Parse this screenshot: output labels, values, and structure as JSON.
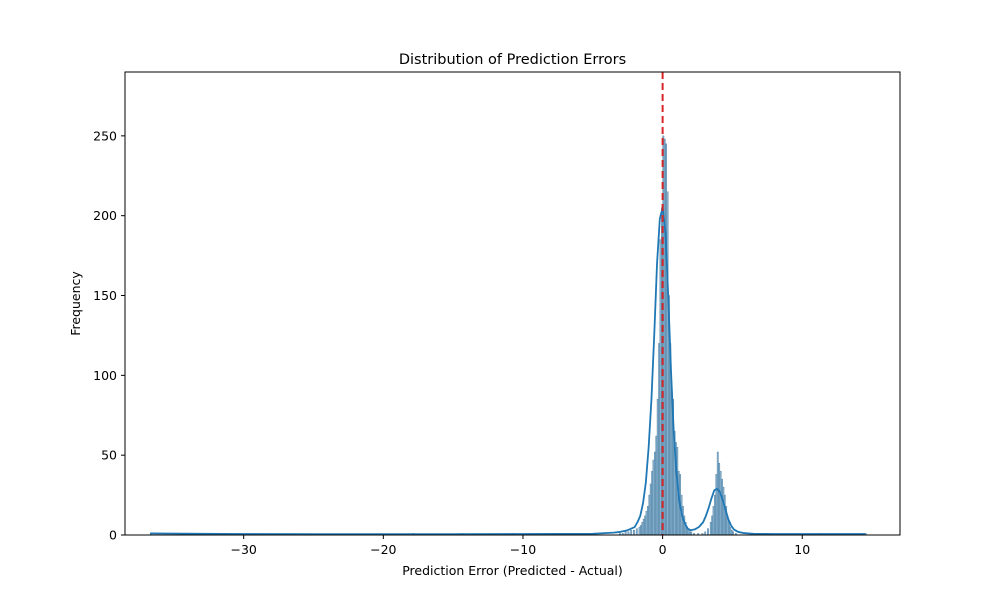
{
  "chart_data": {
    "type": "histogram",
    "title": "Distribution of Prediction Errors",
    "xlabel": "Prediction Error (Predicted - Actual)",
    "ylabel": "Frequency",
    "xlim": [
      -38.5,
      17.0
    ],
    "ylim": [
      0,
      290
    ],
    "x_ticks": [
      -30,
      -20,
      -10,
      0,
      10
    ],
    "x_tick_labels": [
      "−30",
      "−20",
      "−10",
      "0",
      "10"
    ],
    "y_ticks": [
      0,
      50,
      100,
      150,
      200,
      250
    ],
    "y_tick_labels": [
      "0",
      "50",
      "100",
      "150",
      "200",
      "250"
    ],
    "grid": false,
    "legend": "none",
    "bin_width": 0.1,
    "bins": [
      [
        -36.7,
        1
      ],
      [
        -32.6,
        1
      ],
      [
        -17.9,
        1
      ],
      [
        -14.4,
        1
      ],
      [
        -10.8,
        1
      ],
      [
        -5.3,
        1
      ],
      [
        -3.1,
        1
      ],
      [
        -2.9,
        1
      ],
      [
        -2.7,
        2
      ],
      [
        -2.5,
        2
      ],
      [
        -2.3,
        3
      ],
      [
        -2.1,
        3
      ],
      [
        -1.9,
        4
      ],
      [
        -1.7,
        5
      ],
      [
        -1.6,
        6
      ],
      [
        -1.5,
        8
      ],
      [
        -1.4,
        10
      ],
      [
        -1.3,
        12
      ],
      [
        -1.2,
        15
      ],
      [
        -1.1,
        18
      ],
      [
        -1.0,
        25
      ],
      [
        -0.9,
        32
      ],
      [
        -0.8,
        40
      ],
      [
        -0.7,
        47
      ],
      [
        -0.6,
        52
      ],
      [
        -0.5,
        62
      ],
      [
        -0.4,
        85
      ],
      [
        -0.3,
        120
      ],
      [
        -0.2,
        185
      ],
      [
        -0.1,
        205
      ],
      [
        0.0,
        250
      ],
      [
        0.1,
        248
      ],
      [
        0.2,
        245
      ],
      [
        0.3,
        215
      ],
      [
        0.4,
        150
      ],
      [
        0.5,
        120
      ],
      [
        0.6,
        90
      ],
      [
        0.7,
        85
      ],
      [
        0.8,
        65
      ],
      [
        0.9,
        58
      ],
      [
        1.0,
        55
      ],
      [
        1.1,
        40
      ],
      [
        1.2,
        38
      ],
      [
        1.3,
        25
      ],
      [
        1.4,
        18
      ],
      [
        1.5,
        12
      ],
      [
        1.6,
        8
      ],
      [
        1.7,
        5
      ],
      [
        1.8,
        3
      ],
      [
        1.9,
        2
      ],
      [
        2.0,
        2
      ],
      [
        2.2,
        1
      ],
      [
        2.5,
        1
      ],
      [
        2.8,
        1
      ],
      [
        3.0,
        2
      ],
      [
        3.2,
        4
      ],
      [
        3.4,
        8
      ],
      [
        3.5,
        12
      ],
      [
        3.6,
        18
      ],
      [
        3.7,
        25
      ],
      [
        3.8,
        38
      ],
      [
        3.9,
        52
      ],
      [
        4.0,
        45
      ],
      [
        4.1,
        40
      ],
      [
        4.2,
        35
      ],
      [
        4.3,
        30
      ],
      [
        4.4,
        25
      ],
      [
        4.5,
        18
      ],
      [
        4.6,
        12
      ],
      [
        4.7,
        8
      ],
      [
        4.8,
        5
      ],
      [
        4.9,
        3
      ],
      [
        5.0,
        2
      ],
      [
        5.2,
        1
      ],
      [
        7.4,
        1
      ],
      [
        11.3,
        1
      ],
      [
        14.5,
        1
      ]
    ],
    "kde": {
      "x": [
        -36.7,
        -33,
        -30,
        -25,
        -20,
        -15,
        -10,
        -5,
        -3.5,
        -3,
        -2.5,
        -2,
        -1.8,
        -1.6,
        -1.4,
        -1.2,
        -1.0,
        -0.8,
        -0.6,
        -0.4,
        -0.2,
        0.0,
        0.2,
        0.4,
        0.6,
        0.8,
        1.0,
        1.2,
        1.4,
        1.6,
        1.8,
        2.0,
        2.3,
        2.6,
        2.9,
        3.1,
        3.3,
        3.5,
        3.7,
        3.9,
        4.1,
        4.3,
        4.5,
        4.7,
        4.9,
        5.1,
        5.4,
        5.8,
        6.5,
        8,
        10,
        12,
        14.5
      ],
      "y": [
        1,
        0.8,
        0.6,
        0.5,
        0.5,
        0.5,
        0.6,
        0.8,
        1.5,
        2,
        3,
        5,
        8,
        12,
        20,
        33,
        55,
        85,
        125,
        170,
        198,
        205,
        190,
        150,
        103,
        64,
        38,
        21,
        12,
        7,
        4,
        3,
        3.5,
        5,
        8,
        12,
        17,
        23,
        28,
        29,
        27,
        22,
        16,
        10,
        6,
        3.5,
        2,
        1.2,
        0.8,
        0.6,
        0.6,
        0.6,
        0.6
      ]
    },
    "reference_line": {
      "x": 0,
      "style": "dashed",
      "color": "#d62728"
    },
    "colors": {
      "bar_fill": "#6fa0c4",
      "bar_edge": "#4f7f9f",
      "kde": "#1f77b4",
      "reference": "#d62728",
      "axis": "#000000"
    }
  }
}
